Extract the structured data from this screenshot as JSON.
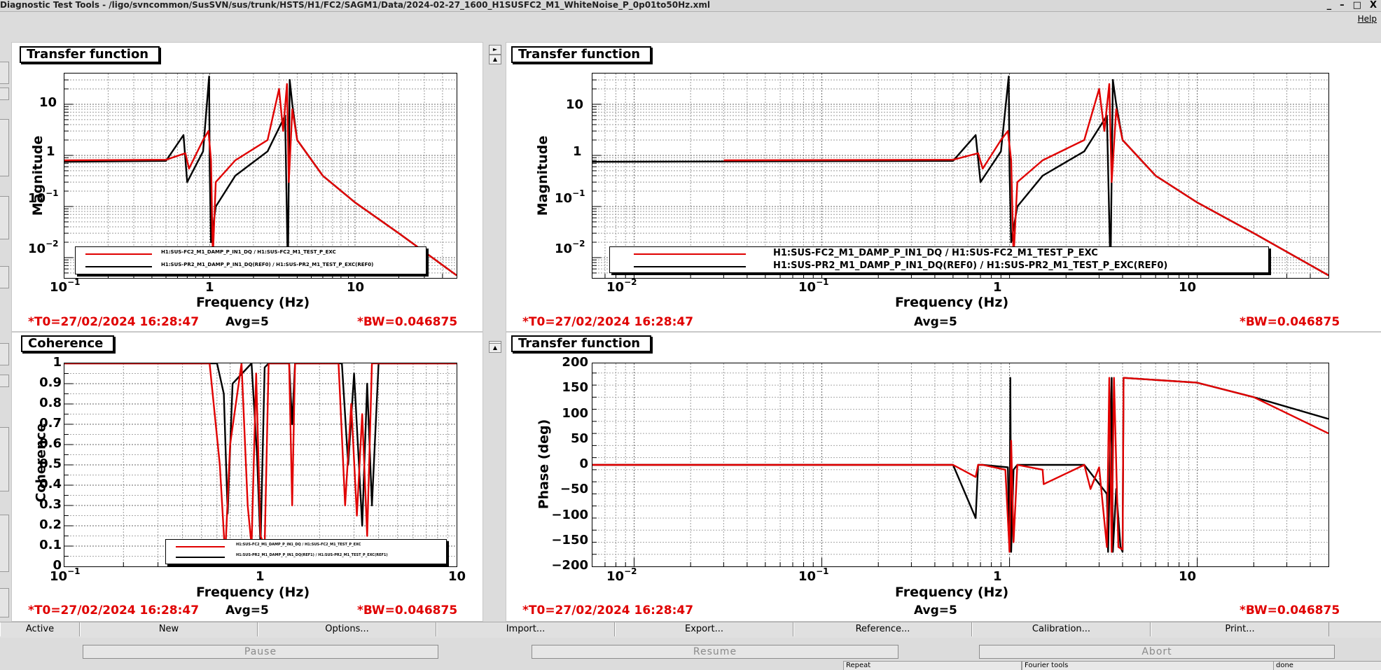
{
  "window": {
    "title": "Diagnostic Test Tools - /ligo/svncommon/SusSVN/sus/trunk/HSTS/H1/FC2/SAGM1/Data/2024-02-27_1600_H1SUSFC2_M1_WhiteNoise_P_0p01to50Hz.xml",
    "controls": [
      "_",
      "–",
      "□",
      "X"
    ]
  },
  "menu": {
    "help": "Help"
  },
  "panels": {
    "tl": {
      "title": "Transfer function",
      "ylabel": "Magnitude",
      "xlabel": "Frequency (Hz)",
      "yticks": [
        "10",
        "1"
      ],
      "yticks_exp": [
        {
          "base": "10",
          "exp": "−1"
        },
        {
          "base": "10",
          "exp": "−2"
        }
      ],
      "xticks_exp": [
        {
          "base": "10",
          "exp": "−1"
        }
      ],
      "xticks": [
        "1",
        "10"
      ],
      "t0": "*T0=27/02/2024 16:28:47",
      "avg": "Avg=5",
      "bw": "*BW=0.046875",
      "legend": [
        "H1:SUS-FC2_M1_DAMP_P_IN1_DQ / H1:SUS-FC2_M1_TEST_P_EXC",
        "H1:SUS-PR2_M1_DAMP_P_IN1_DQ(REF0) / H1:SUS-PR2_M1_TEST_P_EXC(REF0)"
      ]
    },
    "tr": {
      "title": "Transfer function",
      "ylabel": "Magnitude",
      "xlabel": "Frequency (Hz)",
      "yticks": [
        "10",
        "1"
      ],
      "yticks_exp": [
        {
          "base": "10",
          "exp": "−1"
        },
        {
          "base": "10",
          "exp": "−2"
        }
      ],
      "xticks_exp": [
        {
          "base": "10",
          "exp": "−2"
        },
        {
          "base": "10",
          "exp": "−1"
        }
      ],
      "xticks": [
        "1",
        "10"
      ],
      "t0": "*T0=27/02/2024 16:28:47",
      "avg": "Avg=5",
      "bw": "*BW=0.046875",
      "legend": [
        "H1:SUS-FC2_M1_DAMP_P_IN1_DQ / H1:SUS-FC2_M1_TEST_P_EXC",
        "H1:SUS-PR2_M1_DAMP_P_IN1_DQ(REF0) / H1:SUS-PR2_M1_TEST_P_EXC(REF0)"
      ]
    },
    "bl": {
      "title": "Coherence",
      "ylabel": "Coherence",
      "xlabel": "Frequency (Hz)",
      "yticks": [
        "1",
        "0.9",
        "0.8",
        "0.7",
        "0.6",
        "0.5",
        "0.4",
        "0.3",
        "0.2",
        "0.1",
        "0"
      ],
      "xticks_exp": [
        {
          "base": "10",
          "exp": "−1"
        }
      ],
      "xticks": [
        "1",
        "10"
      ],
      "t0": "*T0=27/02/2024 16:28:47",
      "avg": "Avg=5",
      "bw": "*BW=0.046875",
      "legend": [
        "H1:SUS-FC2_M1_DAMP_P_IN1_DQ / H1:SUS-FC2_M1_TEST_P_EXC",
        "H1:SUS-PR2_M1_DAMP_P_IN1_DQ(REF1) / H1:SUS-PR2_M1_TEST_P_EXC(REF1)"
      ]
    },
    "br": {
      "title": "Transfer function",
      "ylabel": "Phase (deg)",
      "xlabel": "Frequency (Hz)",
      "yticks": [
        "200",
        "150",
        "100",
        "50",
        "0",
        "−50",
        "−100",
        "−150",
        "−200"
      ],
      "xticks_exp": [
        {
          "base": "10",
          "exp": "−2"
        },
        {
          "base": "10",
          "exp": "−1"
        }
      ],
      "xticks": [
        "1",
        "10"
      ],
      "t0": "*T0=27/02/2024 16:28:47",
      "avg": "Avg=5",
      "bw": "*BW=0.046875"
    }
  },
  "buttons": [
    "Active",
    "New",
    "Options...",
    "Import...",
    "Export...",
    "Reference...",
    "Calibration...",
    "Print..."
  ],
  "controls": {
    "pause": "Pause",
    "resume": "Resume",
    "abort": "Abort"
  },
  "status": {
    "repeat": "Repeat",
    "fourier": "Fourier tools",
    "state": "done"
  },
  "colors": {
    "series_live": "#e00000",
    "series_ref": "#000000",
    "accent_text": "#e00000"
  },
  "chart_data": [
    {
      "type": "line",
      "title": "Transfer function",
      "xlabel": "Frequency (Hz)",
      "ylabel": "Magnitude",
      "xscale": "log",
      "yscale": "log",
      "xlim": [
        0.1,
        50
      ],
      "ylim": [
        0.004,
        40
      ],
      "grid": true,
      "legend": "bottom",
      "series": [
        {
          "name": "H1:SUS-FC2_M1_DAMP_P_IN1_DQ / H1:SUS-FC2_M1_TEST_P_EXC",
          "color": "#e00000",
          "x": [
            0.1,
            0.5,
            0.68,
            0.72,
            0.9,
            0.98,
            1.02,
            1.05,
            1.1,
            1.5,
            2.5,
            3.0,
            3.2,
            3.4,
            3.5,
            3.7,
            4,
            6,
            10,
            20,
            50
          ],
          "y": [
            0.8,
            0.82,
            1.1,
            0.55,
            2,
            3,
            0.8,
            0.01,
            0.3,
            0.8,
            2,
            20,
            3,
            25,
            0.3,
            8,
            2,
            0.4,
            0.12,
            0.03,
            0.0045
          ]
        },
        {
          "name": "H1:SUS-PR2_M1_DAMP_P_IN1_DQ(REF0) / H1:SUS-PR2_M1_TEST_P_EXC(REF0)",
          "color": "#000000",
          "x": [
            0.1,
            0.5,
            0.66,
            0.7,
            0.9,
            0.99,
            1.0,
            1.02,
            1.1,
            1.5,
            2.5,
            3.3,
            3.45,
            3.55,
            3.7,
            4,
            6,
            10,
            20,
            50
          ],
          "y": [
            0.75,
            0.78,
            2.5,
            0.3,
            1.2,
            35,
            0.5,
            0.02,
            0.1,
            0.4,
            1.2,
            6,
            0.005,
            30,
            10,
            2,
            0.4,
            0.12,
            0.03,
            0.0045
          ]
        }
      ]
    },
    {
      "type": "line",
      "title": "Transfer function",
      "xlabel": "Frequency (Hz)",
      "ylabel": "Magnitude",
      "xscale": "log",
      "yscale": "log",
      "xlim": [
        0.006,
        50
      ],
      "ylim": [
        0.004,
        40
      ],
      "grid": true,
      "legend": "bottom",
      "series": [
        {
          "name": "H1:SUS-FC2_M1_DAMP_P_IN1_DQ / H1:SUS-FC2_M1_TEST_P_EXC",
          "color": "#e00000",
          "x": [
            0.03,
            0.5,
            0.68,
            0.72,
            0.9,
            0.98,
            1.02,
            1.05,
            1.1,
            1.5,
            2.5,
            3.0,
            3.2,
            3.4,
            3.5,
            3.7,
            4,
            6,
            10,
            20,
            50
          ],
          "y": [
            0.8,
            0.82,
            1.1,
            0.55,
            2,
            3,
            0.8,
            0.01,
            0.3,
            0.8,
            2,
            20,
            3,
            25,
            0.3,
            8,
            2,
            0.4,
            0.12,
            0.03,
            0.0045
          ]
        },
        {
          "name": "H1:SUS-PR2_M1_DAMP_P_IN1_DQ(REF0) / H1:SUS-PR2_M1_TEST_P_EXC(REF0)",
          "color": "#000000",
          "x": [
            0.006,
            0.5,
            0.66,
            0.7,
            0.9,
            0.99,
            1.0,
            1.02,
            1.1,
            1.5,
            2.5,
            3.3,
            3.45,
            3.55,
            3.7,
            4,
            6,
            10,
            20,
            50
          ],
          "y": [
            0.75,
            0.78,
            2.5,
            0.3,
            1.2,
            35,
            0.5,
            0.02,
            0.1,
            0.4,
            1.2,
            6,
            0.005,
            30,
            10,
            2,
            0.4,
            0.12,
            0.03,
            0.0045
          ]
        }
      ]
    },
    {
      "type": "line",
      "title": "Coherence",
      "xlabel": "Frequency (Hz)",
      "ylabel": "Coherence",
      "xscale": "log",
      "xlim": [
        0.1,
        10
      ],
      "ylim": [
        0,
        1
      ],
      "grid": true,
      "legend": "bottom-right",
      "series": [
        {
          "name": "H1:SUS-FC2_M1_DAMP_P_IN1_DQ / H1:SUS-FC2_M1_TEST_P_EXC",
          "color": "#e00000",
          "x": [
            0.1,
            0.55,
            0.62,
            0.66,
            0.7,
            0.8,
            0.86,
            0.9,
            0.95,
            1.0,
            1.05,
            1.1,
            1.4,
            1.45,
            1.5,
            2.5,
            2.7,
            2.9,
            3.1,
            3.3,
            3.5,
            3.7,
            4,
            10
          ],
          "y": [
            1,
            1,
            0.5,
            0.05,
            0.6,
            1,
            0.3,
            0.1,
            0.95,
            0.15,
            0.1,
            1,
            1,
            0.3,
            1,
            1,
            0.3,
            0.8,
            0.25,
            0.75,
            0.15,
            1,
            1,
            1
          ]
        },
        {
          "name": "H1:SUS-PR2_M1_DAMP_P_IN1_DQ(REF1) / H1:SUS-PR2_M1_TEST_P_EXC(REF1)",
          "color": "#000000",
          "x": [
            0.1,
            0.6,
            0.65,
            0.68,
            0.72,
            0.9,
            0.96,
            1.0,
            1.05,
            1.1,
            1.4,
            1.45,
            1.5,
            2.6,
            2.8,
            3.0,
            3.3,
            3.5,
            3.7,
            4,
            10
          ],
          "y": [
            1,
            1,
            0.85,
            0.26,
            0.9,
            1,
            0.55,
            0.1,
            0.98,
            1,
            1,
            0.7,
            1,
            1,
            0.5,
            0.95,
            0.2,
            0.9,
            0.3,
            1,
            1
          ]
        }
      ]
    },
    {
      "type": "line",
      "title": "Transfer function",
      "xlabel": "Frequency (Hz)",
      "ylabel": "Phase (deg)",
      "xscale": "log",
      "xlim": [
        0.006,
        50
      ],
      "ylim": [
        -210,
        210
      ],
      "grid": true,
      "series": [
        {
          "color": "#e00000",
          "x": [
            0.006,
            0.5,
            0.66,
            0.68,
            0.72,
            0.95,
            1.0,
            1.02,
            1.05,
            1.1,
            1.5,
            1.52,
            2.5,
            2.7,
            3.0,
            3.3,
            3.4,
            3.5,
            3.6,
            3.8,
            4.0,
            4.05,
            10,
            20,
            50
          ],
          "y": [
            0,
            0,
            -25,
            0,
            0,
            -10,
            -180,
            50,
            -160,
            0,
            -10,
            -40,
            0,
            -50,
            -5,
            -170,
            180,
            -180,
            180,
            -170,
            -175,
            180,
            170,
            140,
            65
          ]
        },
        {
          "color": "#000000",
          "x": [
            0.006,
            0.5,
            0.66,
            0.68,
            0.72,
            0.98,
            1.0,
            1.01,
            1.02,
            1.05,
            1.1,
            2.5,
            3.3,
            3.35,
            3.5,
            3.55,
            3.7,
            3.9,
            4.0,
            4.05,
            10,
            20,
            50
          ],
          "y": [
            0,
            0,
            -110,
            0,
            0,
            -5,
            -180,
            180,
            -180,
            -10,
            0,
            0,
            -60,
            -180,
            180,
            -180,
            -50,
            -170,
            -180,
            180,
            170,
            140,
            95
          ]
        }
      ]
    }
  ]
}
